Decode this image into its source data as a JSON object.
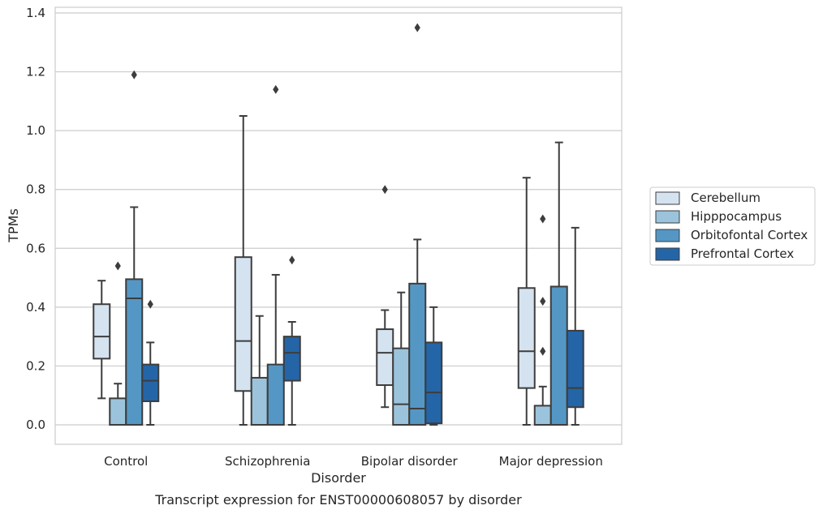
{
  "chart_data": {
    "type": "box",
    "title": "",
    "caption": "Transcript expression for ENST00000608057 by disorder",
    "xlabel": "Disorder",
    "ylabel": "TPMs",
    "ylim": [
      -0.065,
      1.42
    ],
    "yticks": [
      "0.0",
      "0.2",
      "0.4",
      "0.6",
      "0.8",
      "1.0",
      "1.2",
      "1.4"
    ],
    "ytick_values": [
      0,
      0.2,
      0.4,
      0.6,
      0.8,
      1.0,
      1.2,
      1.4
    ],
    "grid": "horizontal",
    "legend_placement": "right",
    "categories": [
      "Control",
      "Schizophrenia",
      "Bipolar disorder",
      "Major depression"
    ],
    "series": [
      {
        "name": "Cerebellum",
        "color": "#d5e3f1",
        "boxes": [
          {
            "whislo": 0.09,
            "q1": 0.225,
            "med": 0.3,
            "q3": 0.41,
            "whishi": 0.49,
            "fliers": []
          },
          {
            "whislo": 0.0,
            "q1": 0.115,
            "med": 0.285,
            "q3": 0.57,
            "whishi": 1.05,
            "fliers": []
          },
          {
            "whislo": 0.06,
            "q1": 0.135,
            "med": 0.245,
            "q3": 0.325,
            "whishi": 0.39,
            "fliers": [
              0.8
            ]
          },
          {
            "whislo": 0.0,
            "q1": 0.125,
            "med": 0.25,
            "q3": 0.465,
            "whishi": 0.84,
            "fliers": []
          }
        ]
      },
      {
        "name": "Hipppocampus",
        "color": "#9bc4dc",
        "boxes": [
          {
            "whislo": 0.0,
            "q1": 0.0,
            "med": 0.0,
            "q3": 0.09,
            "whishi": 0.14,
            "fliers": [
              0.54
            ]
          },
          {
            "whislo": 0.0,
            "q1": 0.0,
            "med": 0.0,
            "q3": 0.16,
            "whishi": 0.37,
            "fliers": []
          },
          {
            "whislo": 0.0,
            "q1": 0.0,
            "med": 0.07,
            "q3": 0.26,
            "whishi": 0.45,
            "fliers": []
          },
          {
            "whislo": 0.0,
            "q1": 0.0,
            "med": 0.0,
            "q3": 0.065,
            "whishi": 0.13,
            "fliers": [
              0.25,
              0.42,
              0.7
            ]
          }
        ]
      },
      {
        "name": "Orbitofontal Cortex",
        "color": "#5497c4",
        "boxes": [
          {
            "whislo": 0.0,
            "q1": 0.0,
            "med": 0.43,
            "q3": 0.495,
            "whishi": 0.74,
            "fliers": [
              1.19
            ]
          },
          {
            "whislo": 0.0,
            "q1": 0.0,
            "med": 0.0,
            "q3": 0.205,
            "whishi": 0.51,
            "fliers": [
              1.14
            ]
          },
          {
            "whislo": 0.0,
            "q1": 0.0,
            "med": 0.055,
            "q3": 0.48,
            "whishi": 0.63,
            "fliers": [
              1.35
            ]
          },
          {
            "whislo": 0.0,
            "q1": 0.0,
            "med": 0.0,
            "q3": 0.47,
            "whishi": 0.96,
            "fliers": []
          }
        ]
      },
      {
        "name": "Prefrontal Cortex",
        "color": "#2465a7",
        "boxes": [
          {
            "whislo": 0.0,
            "q1": 0.08,
            "med": 0.15,
            "q3": 0.205,
            "whishi": 0.28,
            "fliers": [
              0.41
            ]
          },
          {
            "whislo": 0.0,
            "q1": 0.15,
            "med": 0.245,
            "q3": 0.3,
            "whishi": 0.35,
            "fliers": [
              0.56
            ]
          },
          {
            "whislo": 0.0,
            "q1": 0.005,
            "med": 0.11,
            "q3": 0.28,
            "whishi": 0.4,
            "fliers": []
          },
          {
            "whislo": 0.0,
            "q1": 0.06,
            "med": 0.125,
            "q3": 0.32,
            "whishi": 0.67,
            "fliers": []
          }
        ]
      }
    ]
  }
}
